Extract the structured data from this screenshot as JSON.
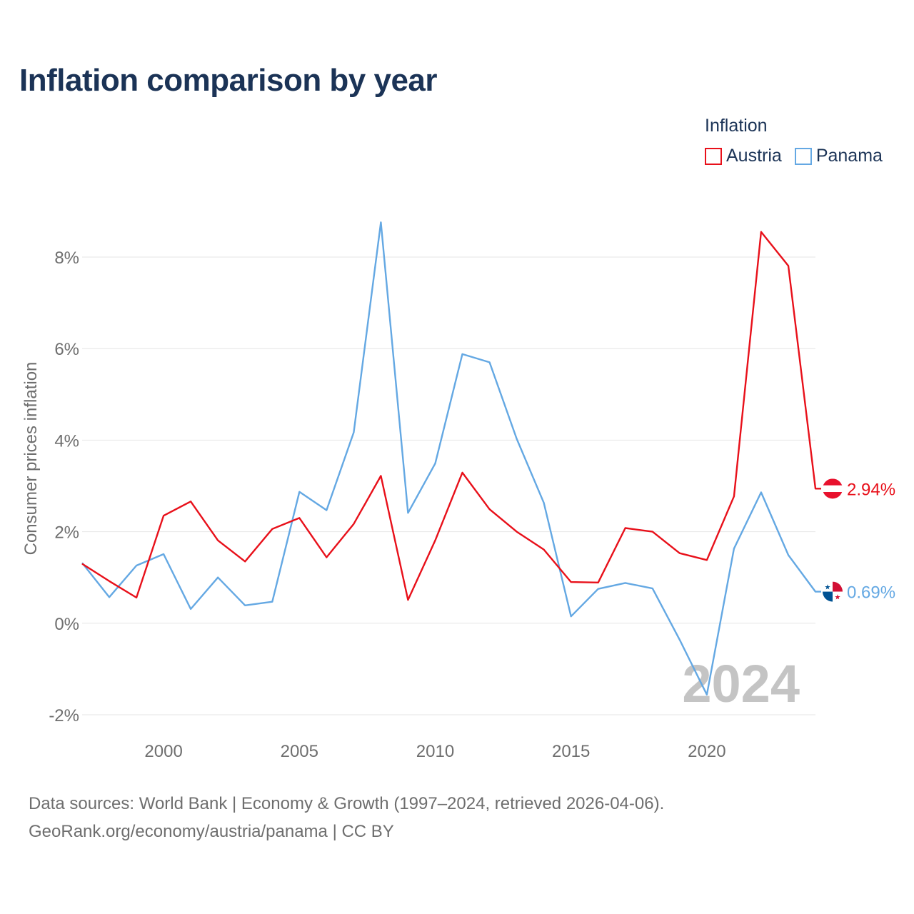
{
  "chart_data": {
    "type": "line",
    "title": "Inflation comparison by year",
    "ylabel": "Consumer prices inflation",
    "xlabel": "",
    "x": [
      1997,
      1998,
      1999,
      2000,
      2001,
      2002,
      2003,
      2004,
      2005,
      2006,
      2007,
      2008,
      2009,
      2010,
      2011,
      2012,
      2013,
      2014,
      2015,
      2016,
      2017,
      2018,
      2019,
      2020,
      2021,
      2022,
      2023,
      2024
    ],
    "xlim": [
      1997,
      2024
    ],
    "ylim": [
      -2,
      8
    ],
    "xticks": [
      2000,
      2005,
      2010,
      2015,
      2020
    ],
    "yticks": [
      -2,
      0,
      2,
      4,
      6,
      8
    ],
    "ytick_labels": [
      "-2%",
      "0%",
      "2%",
      "4%",
      "6%",
      "8%"
    ],
    "legend_title": "Inflation",
    "legend_position": "top-right",
    "watermark_year": "2024",
    "series": [
      {
        "name": "Austria",
        "color": "#e8101a",
        "end_label": "2.94%",
        "values": [
          1.3,
          0.92,
          0.56,
          2.35,
          2.66,
          1.81,
          1.35,
          2.06,
          2.3,
          1.44,
          2.17,
          3.22,
          0.51,
          1.81,
          3.29,
          2.49,
          2.0,
          1.61,
          0.9,
          0.89,
          2.08,
          2.0,
          1.53,
          1.38,
          2.77,
          8.55,
          7.81,
          2.94
        ]
      },
      {
        "name": "Panama",
        "color": "#64a8e3",
        "end_label": "0.69%",
        "values": [
          1.32,
          0.57,
          1.26,
          1.51,
          0.31,
          1.0,
          0.39,
          0.47,
          2.87,
          2.47,
          4.17,
          8.76,
          2.41,
          3.49,
          5.88,
          5.7,
          4.03,
          2.63,
          0.15,
          0.75,
          0.88,
          0.76,
          -0.36,
          -1.56,
          1.63,
          2.86,
          1.49,
          0.69
        ]
      }
    ]
  },
  "source": {
    "line1": "Data sources: World Bank | Economy & Growth (1997–2024, retrieved 2026-04-06).",
    "line2": "GeoRank.org/economy/austria/panama | CC BY"
  },
  "flags": {
    "austria_icon": "austria-flag-icon",
    "panama_icon": "panama-flag-icon"
  }
}
